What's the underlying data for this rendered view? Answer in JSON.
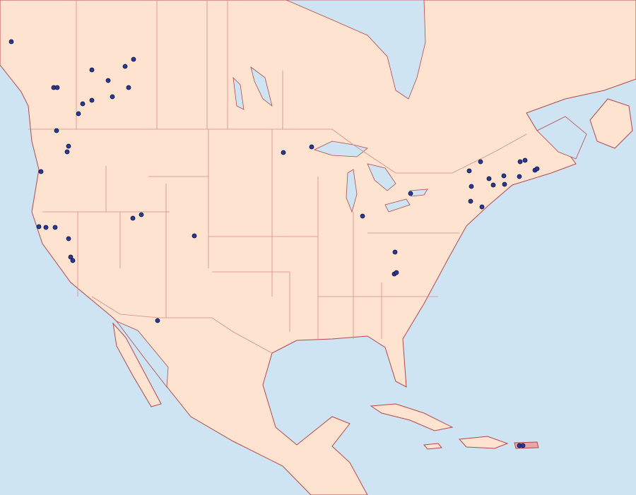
{
  "map": {
    "colors": {
      "ocean": "#cfe4f3",
      "land": "#fde3d0",
      "country_border": "#b5484a",
      "state_border": "#d98a85",
      "county_border": "#efb9ab",
      "lake": "#cfe4f3",
      "marker_fill": "#2a3a9c",
      "marker_stroke": "#0a0a2a",
      "highlight_region": "#e8a6a6"
    },
    "marker_icon": "occurrence-dot-icon"
  }
}
